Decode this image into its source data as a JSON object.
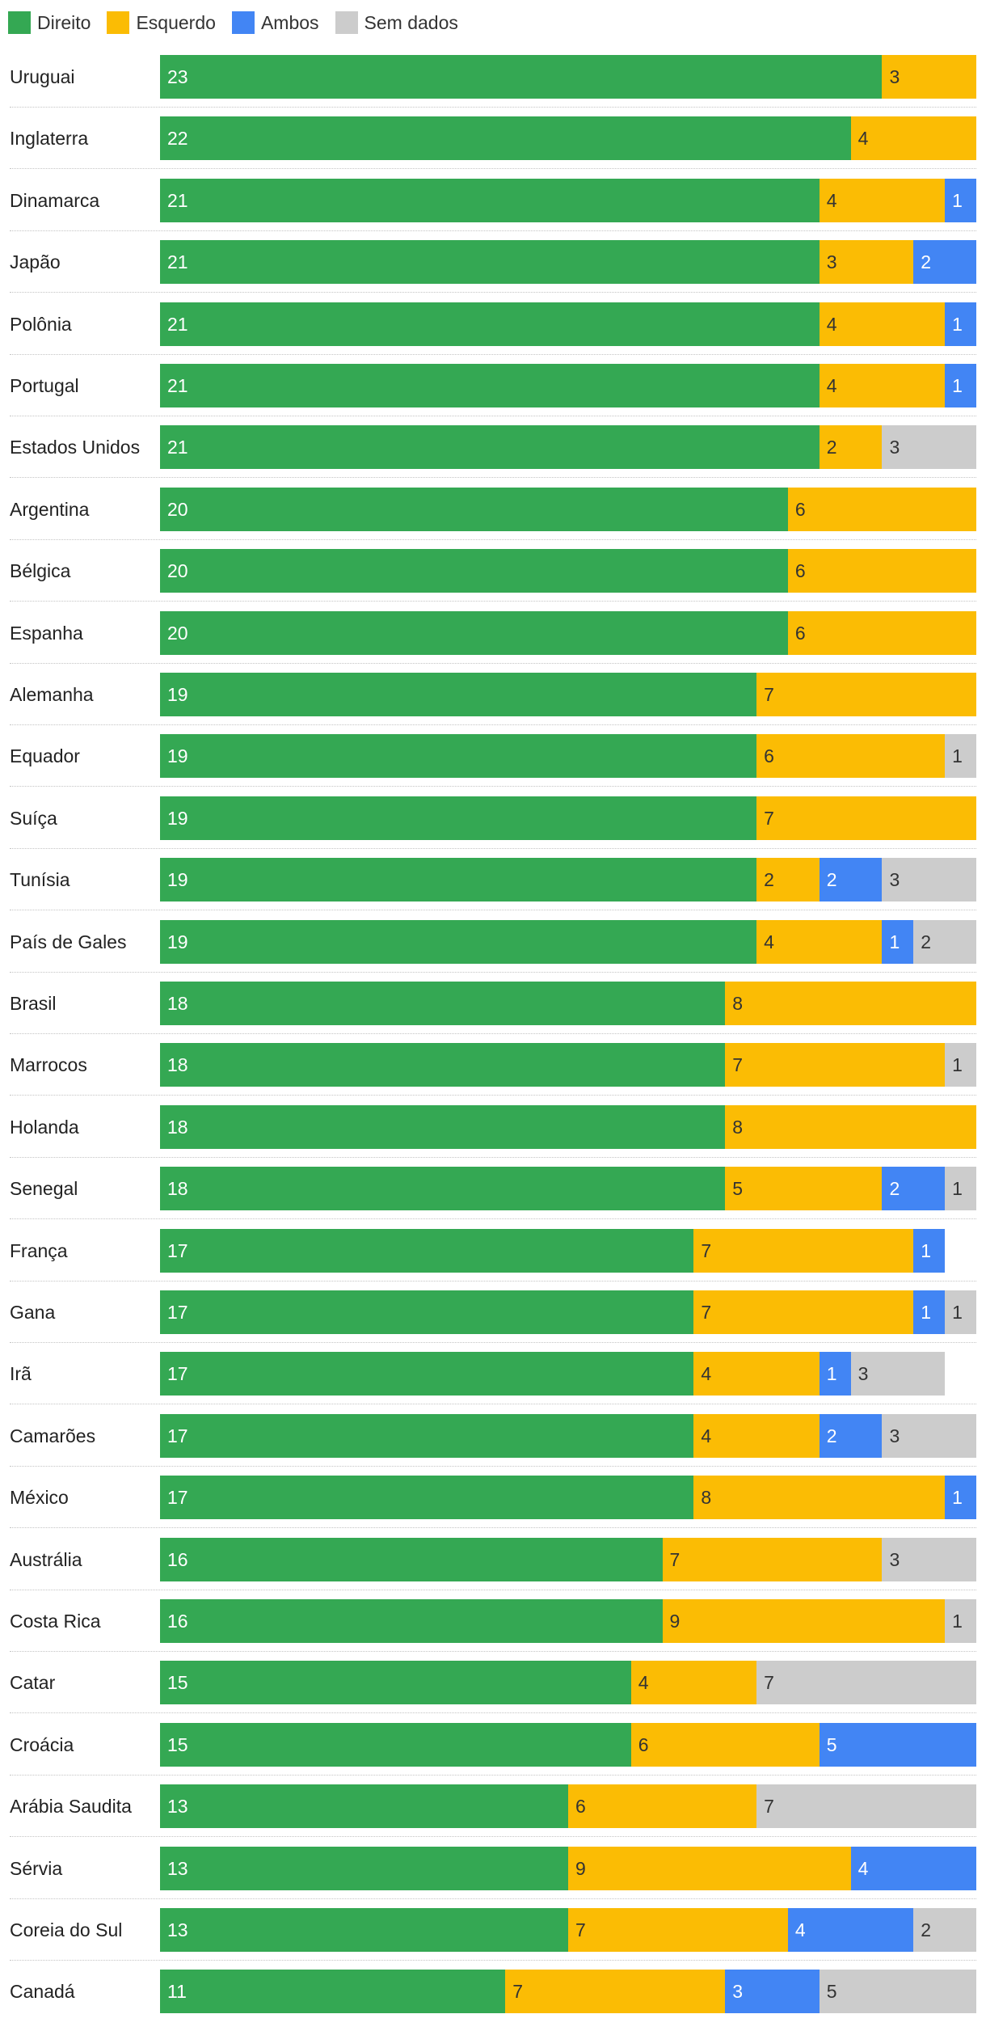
{
  "chart_data": {
    "type": "bar",
    "orientation": "horizontal",
    "stacked": true,
    "title": "",
    "xlabel": "",
    "ylabel": "",
    "xlim": [
      0,
      26
    ],
    "grid": false,
    "legend_position": "top-left",
    "categories": [
      "Uruguai",
      "Inglaterra",
      "Dinamarca",
      "Japão",
      "Polônia",
      "Portugal",
      "Estados Unidos",
      "Argentina",
      "Bélgica",
      "Espanha",
      "Alemanha",
      "Equador",
      "Suíça",
      "Tunísia",
      "País de Gales",
      "Brasil",
      "Marrocos",
      "Holanda",
      "Senegal",
      "França",
      "Gana",
      "Irã",
      "Camarões",
      "México",
      "Austrália",
      "Costa Rica",
      "Catar",
      "Croácia",
      "Arábia Saudita",
      "Sérvia",
      "Coreia do Sul",
      "Canadá"
    ],
    "series": [
      {
        "name": "Direito",
        "color": "#34a853",
        "label_color": "#ffffff",
        "values": [
          23,
          22,
          21,
          21,
          21,
          21,
          21,
          20,
          20,
          20,
          19,
          19,
          19,
          19,
          19,
          18,
          18,
          18,
          18,
          17,
          17,
          17,
          17,
          17,
          16,
          16,
          15,
          15,
          13,
          13,
          13,
          11
        ]
      },
      {
        "name": "Esquerdo",
        "color": "#fbbc04",
        "label_color": "#333333",
        "values": [
          3,
          4,
          4,
          3,
          4,
          4,
          2,
          6,
          6,
          6,
          7,
          6,
          7,
          2,
          4,
          8,
          7,
          8,
          5,
          7,
          7,
          4,
          4,
          8,
          7,
          9,
          4,
          6,
          6,
          9,
          7,
          7
        ]
      },
      {
        "name": "Ambos",
        "color": "#4285f4",
        "label_color": "#ffffff",
        "values": [
          0,
          0,
          1,
          2,
          1,
          1,
          0,
          0,
          0,
          0,
          0,
          0,
          0,
          2,
          1,
          0,
          0,
          0,
          2,
          1,
          1,
          1,
          2,
          1,
          0,
          0,
          0,
          5,
          0,
          4,
          4,
          3
        ]
      },
      {
        "name": "Sem dados",
        "color": "#cccccc",
        "label_color": "#333333",
        "values": [
          0,
          0,
          0,
          0,
          0,
          0,
          3,
          0,
          0,
          0,
          0,
          1,
          0,
          3,
          2,
          0,
          1,
          0,
          1,
          0,
          1,
          3,
          3,
          0,
          3,
          1,
          7,
          0,
          7,
          0,
          2,
          5
        ]
      }
    ]
  }
}
